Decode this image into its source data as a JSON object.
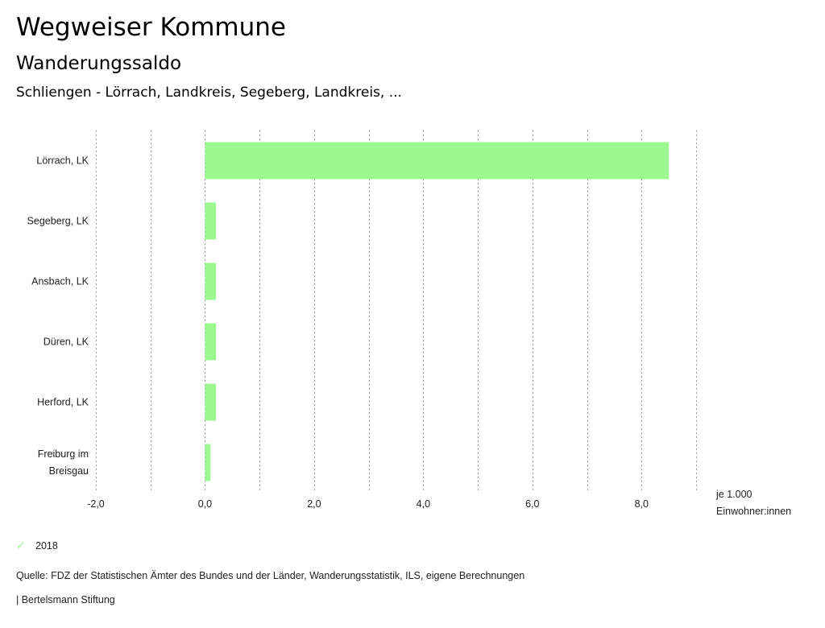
{
  "header": {
    "title": "Wegweiser Kommune",
    "subtitle": "Wanderungssaldo",
    "selection": "Schliengen - Lörrach, Landkreis, Segeberg, Landkreis, ..."
  },
  "chart_data": {
    "type": "bar",
    "orientation": "horizontal",
    "categories": [
      "Lörrach, LK",
      "Segeberg, LK",
      "Ansbach, LK",
      "Düren, LK",
      "Herford, LK",
      "Freiburg im Breisgau"
    ],
    "category_lines": [
      [
        "Lörrach, LK"
      ],
      [
        "Segeberg, LK"
      ],
      [
        "Ansbach, LK"
      ],
      [
        "Düren, LK"
      ],
      [
        "Herford, LK"
      ],
      [
        "Freiburg im",
        "Breisgau"
      ]
    ],
    "series": [
      {
        "name": "2018",
        "values": [
          8.5,
          0.2,
          0.2,
          0.2,
          0.2,
          0.1
        ]
      }
    ],
    "xlim": [
      -2.0,
      9.0
    ],
    "xticks": [
      -2.0,
      0.0,
      2.0,
      4.0,
      6.0,
      8.0
    ],
    "xtick_labels": [
      "-2,0",
      "0,0",
      "2,0",
      "4,0",
      "6,0",
      "8,0"
    ],
    "grid_step": 1.0,
    "unit_label": [
      "je 1.000",
      "Einwohner:innen"
    ],
    "bar_color": "#9cf98f",
    "grid": true
  },
  "legend": {
    "label": "2018",
    "icon": "check-icon"
  },
  "footer": {
    "source": "Quelle: FDZ der Statistischen Ämter des Bundes und der Länder, Wanderungsstatistik, ILS, eigene Berechnungen",
    "brand": "| Bertelsmann Stiftung"
  }
}
